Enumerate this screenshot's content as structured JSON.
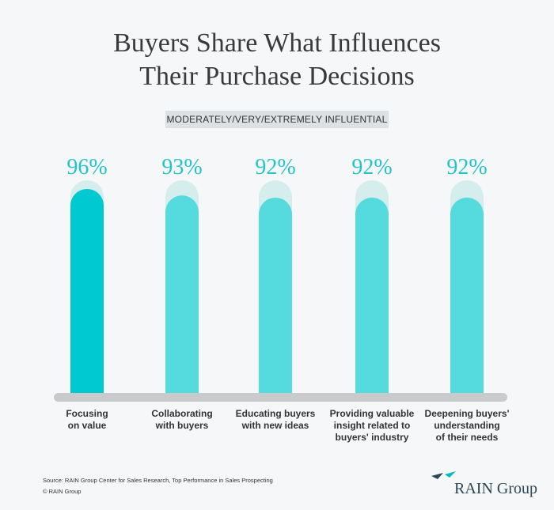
{
  "chart_data": {
    "type": "bar",
    "title": "Buyers Share What Influences\nTheir Purchase Decisions",
    "subtitle": "MODERATELY/VERY/EXTREMELY INFLUENTIAL",
    "categories": [
      "Focusing\non value",
      "Collaborating\nwith buyers",
      "Educating buyers\nwith new ideas",
      "Providing valuable\ninsight related to\nbuyers' industry",
      "Deepening buyers'\nunderstanding\nof their needs"
    ],
    "values": [
      96,
      93,
      92,
      92,
      92
    ],
    "value_labels": [
      "96%",
      "93%",
      "92%",
      "92%",
      "92%"
    ],
    "colors": [
      "#00c9d1",
      "#55dade",
      "#55dade",
      "#55dade",
      "#55dade"
    ],
    "ylim": [
      0,
      100
    ],
    "source": "Source: RAIN Group Center for Sales Research, Top Performance in Sales Prospecting",
    "copyright": "© RAIN Group",
    "logo": "RAIN Group"
  }
}
